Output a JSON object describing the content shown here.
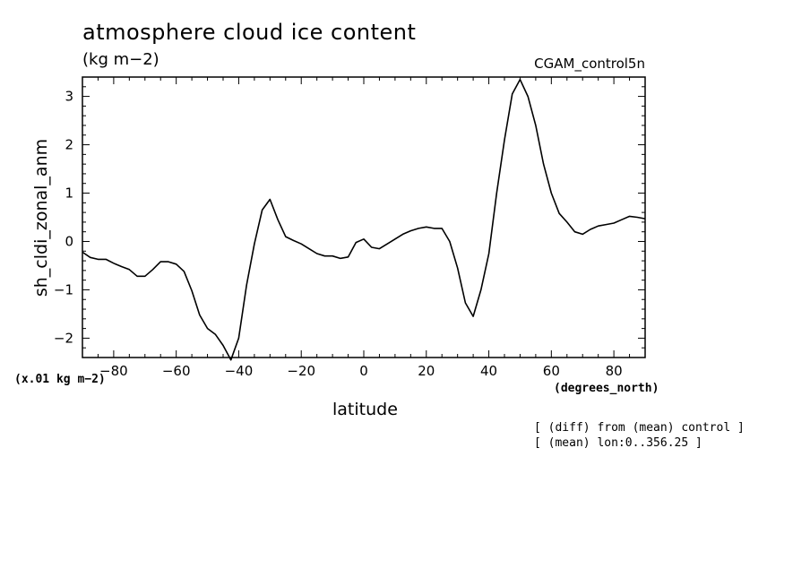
{
  "chart_data": {
    "type": "line",
    "title": "atmosphere cloud ice content",
    "units": "(kg m−2)",
    "run_label": "CGAM_control5n",
    "ylabel": "sh_cldi_zonal_anm",
    "xlabel": "latitude",
    "xunits": "(degrees_north)",
    "scale_note": "(x.01 kg m−2)",
    "notes": [
      "[ (diff) from (mean) control ]",
      "[ (mean) lon:0..356.25 ]"
    ],
    "xlim": [
      -90,
      90
    ],
    "ylim": [
      -2.4,
      3.4
    ],
    "xticks": [
      -80,
      -60,
      -40,
      -20,
      0,
      20,
      40,
      60,
      80
    ],
    "xtick_labels": [
      "−80",
      "−60",
      "−40",
      "−20",
      "0",
      "20",
      "40",
      "60",
      "80"
    ],
    "yticks": [
      -2,
      -1,
      0,
      1,
      2,
      3
    ],
    "ytick_labels": [
      "−2",
      "−1",
      "0",
      "1",
      "2",
      "3"
    ],
    "grid": false,
    "series": [
      {
        "color": "#000000",
        "x": [
          -90,
          -87.5,
          -85,
          -82.5,
          -80,
          -77.5,
          -75,
          -72.5,
          -70,
          -67.5,
          -65,
          -62.5,
          -60,
          -57.5,
          -55,
          -52.5,
          -50,
          -47.5,
          -45,
          -42.5,
          -40,
          -37.5,
          -35,
          -32.5,
          -30,
          -27.5,
          -25,
          -22.5,
          -20,
          -17.5,
          -15,
          -12.5,
          -10,
          -7.5,
          -5,
          -2.5,
          0,
          2.5,
          5,
          7.5,
          10,
          12.5,
          15,
          17.5,
          20,
          22.5,
          25,
          27.5,
          30,
          32.5,
          35,
          37.5,
          40,
          42.5,
          45,
          47.5,
          50,
          52.5,
          55,
          57.5,
          60,
          62.5,
          65,
          67.5,
          70,
          72.5,
          75,
          77.5,
          80,
          82.5,
          85,
          87.5,
          90
        ],
        "values": [
          -0.22,
          -0.33,
          -0.37,
          -0.37,
          -0.45,
          -0.52,
          -0.58,
          -0.72,
          -0.72,
          -0.58,
          -0.42,
          -0.42,
          -0.47,
          -0.62,
          -1.02,
          -1.52,
          -1.8,
          -1.92,
          -2.15,
          -2.45,
          -2.0,
          -0.9,
          -0.05,
          0.65,
          0.87,
          0.45,
          0.1,
          0.02,
          -0.05,
          -0.15,
          -0.25,
          -0.3,
          -0.3,
          -0.35,
          -0.32,
          -0.02,
          0.05,
          -0.12,
          -0.15,
          -0.05,
          0.05,
          0.15,
          0.22,
          0.27,
          0.3,
          0.27,
          0.27,
          0.0,
          -0.55,
          -1.27,
          -1.55,
          -1.0,
          -0.25,
          1.0,
          2.1,
          3.05,
          3.35,
          3.0,
          2.4,
          1.6,
          1.0,
          0.58,
          0.4,
          0.2,
          0.15,
          0.25,
          0.32,
          0.35,
          0.38,
          0.45,
          0.52,
          0.5,
          0.47
        ]
      }
    ]
  }
}
